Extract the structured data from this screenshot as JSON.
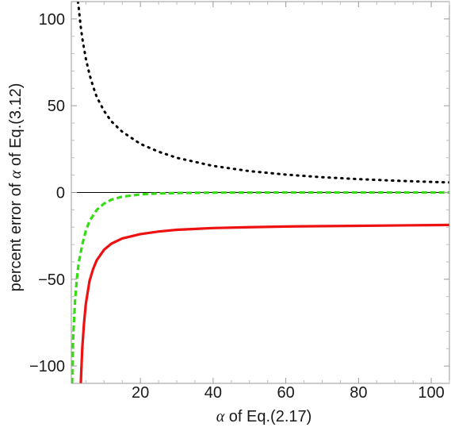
{
  "chart_data": {
    "type": "line",
    "title": "",
    "xlabel": {
      "symbol": "α",
      "text": " of Eq.(2.17)"
    },
    "ylabel": {
      "text": "percent error of ",
      "symbol": "α",
      "suffix": " of Eq.(3.12)"
    },
    "xlim": [
      1,
      105
    ],
    "ylim": [
      -110,
      110
    ],
    "x_ticks": [
      20,
      40,
      60,
      80,
      100
    ],
    "y_ticks": [
      -100,
      -50,
      0,
      50,
      100
    ],
    "x_tick_labels": [
      "20",
      "40",
      "60",
      "80",
      "100"
    ],
    "y_tick_labels": [
      "−100",
      "−50",
      "0",
      "50",
      "100"
    ],
    "grid": false,
    "frame": true,
    "series": [
      {
        "style": "dotted",
        "color": "#000000",
        "x": [
          2.8,
          3,
          3.5,
          4,
          5,
          6,
          7,
          8,
          10,
          12,
          15,
          20,
          25,
          30,
          40,
          50,
          60,
          70,
          80,
          90,
          100,
          105
        ],
        "y": [
          110,
          107,
          97,
          89,
          77,
          68,
          61,
          55,
          47,
          41,
          35,
          28,
          23.5,
          20,
          15.3,
          12.3,
          10.3,
          8.8,
          7.7,
          6.8,
          6.1,
          5.8
        ]
      },
      {
        "style": "dashed",
        "color": "#33dd11",
        "x": [
          1.2,
          1.5,
          2,
          2.5,
          3,
          4,
          5,
          6,
          8,
          10,
          12,
          15,
          20,
          25,
          30,
          40,
          60,
          80,
          105
        ],
        "y": [
          -110,
          -84,
          -63,
          -50,
          -41,
          -30,
          -22,
          -16.5,
          -10,
          -6.4,
          -4.2,
          -2.4,
          -1.1,
          -0.55,
          -0.3,
          -0.1,
          0,
          0,
          0
        ]
      },
      {
        "style": "solid",
        "color": "#ee1111",
        "x": [
          3.6,
          4,
          4.5,
          5,
          6,
          7,
          8,
          10,
          12,
          15,
          20,
          25,
          30,
          40,
          50,
          60,
          80,
          100,
          105
        ],
        "y": [
          -110,
          -90,
          -75,
          -64,
          -51,
          -44,
          -39,
          -33,
          -29.5,
          -26.5,
          -24,
          -22.5,
          -21.5,
          -20.5,
          -20,
          -19.6,
          -19.2,
          -18.8,
          -18.7
        ]
      }
    ],
    "reference_line": {
      "y": 0,
      "color": "#000000"
    }
  }
}
